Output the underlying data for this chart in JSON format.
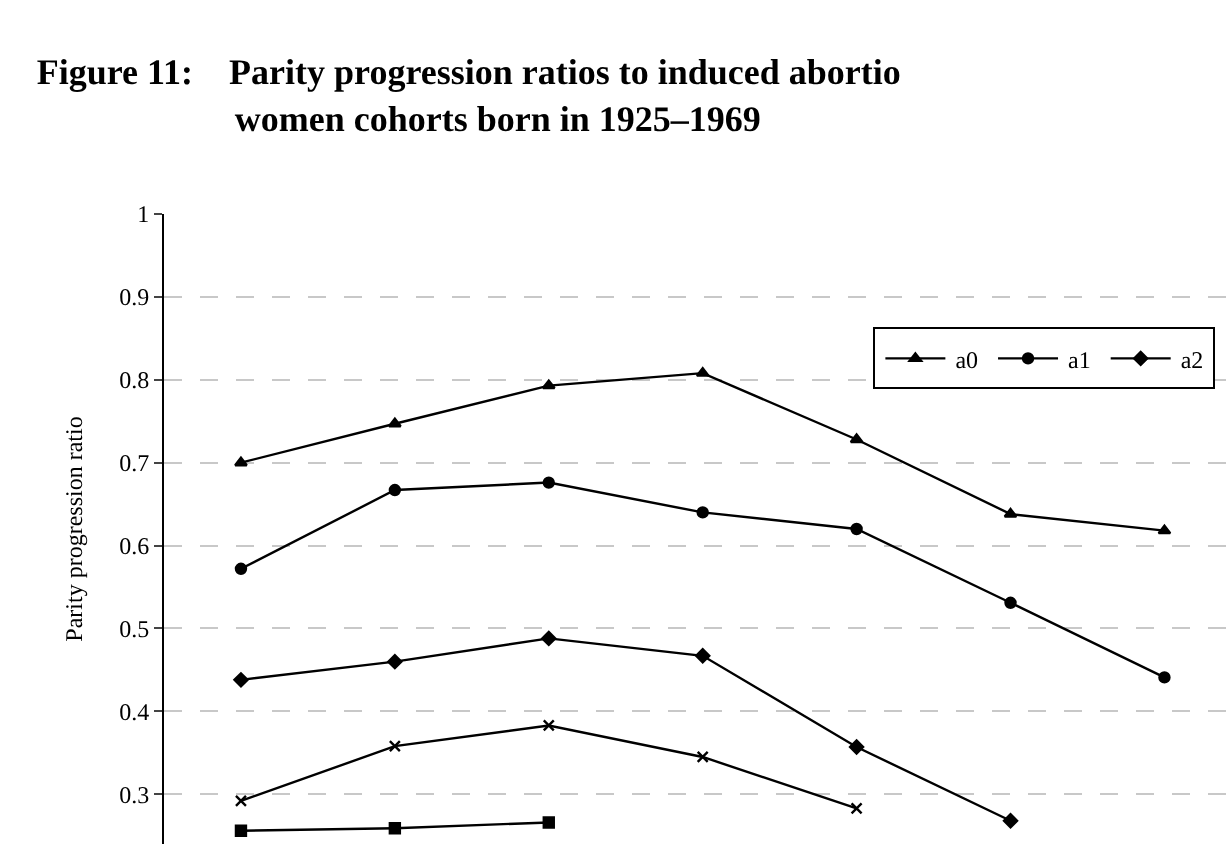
{
  "chart_data": {
    "type": "line",
    "title": "Figure 11:    Parity progression ratios to induced abortio",
    "subtitle": "women cohorts born in 1925–1969",
    "ylabel": "Parity progression ratio",
    "categories": [
      null,
      null,
      null,
      null,
      null,
      null,
      null
    ],
    "series": [
      {
        "name": "a0",
        "color": "#000000",
        "marker": "triangle",
        "values": [
          0.7,
          0.747,
          0.793,
          0.808,
          0.728,
          0.638,
          0.618
        ]
      },
      {
        "name": "a1",
        "color": "#000000",
        "marker": "circle",
        "values": [
          0.572,
          0.667,
          0.676,
          0.64,
          0.62,
          0.531,
          0.441
        ]
      },
      {
        "name": "a2",
        "color": "#000000",
        "marker": "diamond",
        "values": [
          0.438,
          0.46,
          0.488,
          0.467,
          0.357,
          0.268,
          null
        ]
      },
      {
        "color": "#000000",
        "marker": "cross",
        "values": [
          0.292,
          0.358,
          0.383,
          0.345,
          0.283,
          null,
          null
        ]
      },
      {
        "color": "#000000",
        "marker": "square",
        "values": [
          0.256,
          0.259,
          0.266,
          null,
          null,
          null,
          null
        ]
      }
    ],
    "ylim": [
      0.24,
      1
    ],
    "yticks": [
      0.3,
      0.4,
      0.5,
      0.6,
      0.7,
      0.8,
      0.9,
      1
    ],
    "grid": "y",
    "legend": "top right",
    "tick_labels": "y",
    "line_style": "solid"
  }
}
